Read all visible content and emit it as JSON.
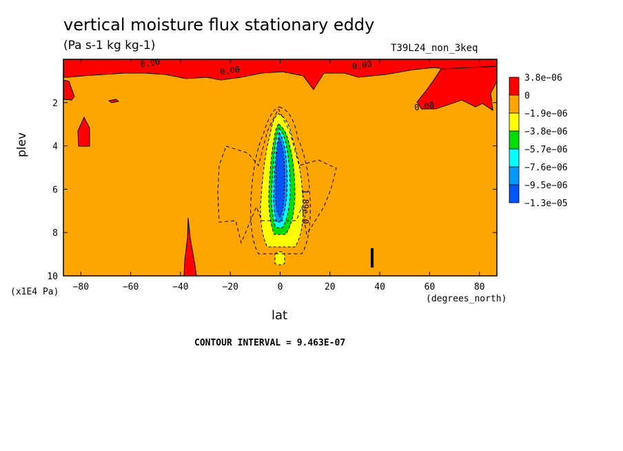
{
  "chart": {
    "title": "vertical moisture flux stationary eddy",
    "units": "(Pa s-1 kg kg-1)",
    "run_id": "T39L24_non_3keq",
    "contour_interval": "CONTOUR INTERVAL = 9.463E-07"
  },
  "chart_data": {
    "type": "heatmap",
    "title": "vertical moisture flux stationary eddy",
    "xlabel": "lat",
    "x_units": "(degrees_north)",
    "ylabel": "plev",
    "y_units": "(x1E4 Pa)",
    "xlim": [
      -87,
      87
    ],
    "ylim": [
      10,
      0
    ],
    "x_ticks": [
      -80,
      -60,
      -40,
      -20,
      0,
      20,
      40,
      60,
      80
    ],
    "y_ticks": [
      2,
      4,
      6,
      8,
      10
    ],
    "legend": {
      "labels": [
        "3.8e-06",
        "0",
        "-1.9e-06",
        "-3.8e-06",
        "-5.7e-06",
        "-7.6e-06",
        "-9.5e-06",
        "-1.3e-05"
      ],
      "colors": [
        "#ff0000",
        "#ffa500",
        "#ffff00",
        "#00dd00",
        "#00ffff",
        "#0099ff",
        "#0055ff"
      ]
    },
    "contour_labels": [
      {
        "text": "0.00",
        "x": -52,
        "y": 0.3
      },
      {
        "text": "0.00",
        "x": -20,
        "y": 0.65
      },
      {
        "text": "0.00",
        "x": 33,
        "y": 0.4
      },
      {
        "text": "0.00",
        "x": 58,
        "y": 2.3
      },
      {
        "text": "1.89e-0",
        "x": 9,
        "y": 6.8
      }
    ],
    "regions": [
      {
        "level": "positive",
        "color": "#ff0000",
        "lat": [
          -87,
          87
        ],
        "plev": [
          0,
          1.2
        ]
      },
      {
        "level": "positive",
        "color": "#ff0000",
        "lat": [
          55,
          87
        ],
        "plev": [
          0.5,
          3.0
        ]
      },
      {
        "level": "negative_min",
        "color": "#0055ff",
        "lat": [
          -3,
          3
        ],
        "plev": [
          3.5,
          7.5
        ]
      }
    ],
    "background_color": "#ffa500",
    "grid": false
  }
}
